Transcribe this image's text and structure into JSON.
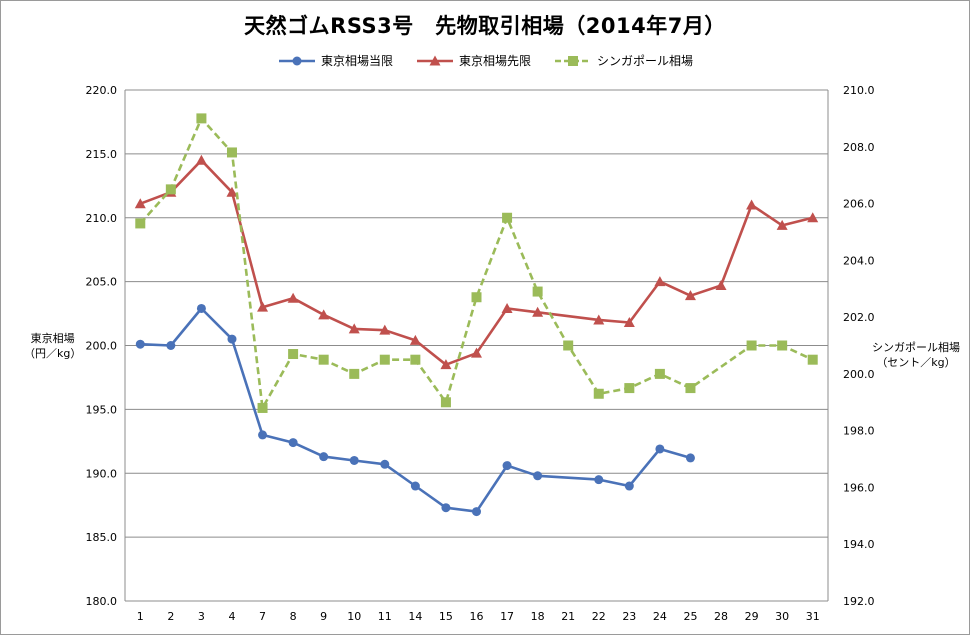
{
  "chart_data": {
    "type": "line",
    "title": "天然ゴムRSS3号　先物取引相場（2014年7月）",
    "ylabel_left": "東京相場\n（円／kg）",
    "ylabel_right": "シンガポール相場\n（セント／kg）",
    "categories": [
      "1",
      "2",
      "3",
      "4",
      "7",
      "8",
      "9",
      "10",
      "11",
      "14",
      "15",
      "16",
      "17",
      "18",
      "21",
      "22",
      "23",
      "24",
      "25",
      "28",
      "29",
      "30",
      "31"
    ],
    "y_left": {
      "min": 180,
      "max": 220,
      "step": 5,
      "tick_labels": [
        "180.0",
        "185.0",
        "190.0",
        "195.0",
        "200.0",
        "205.0",
        "210.0",
        "215.0",
        "220.0"
      ]
    },
    "y_right": {
      "min": 192,
      "max": 210,
      "step": 2,
      "tick_labels": [
        "192.0",
        "194.0",
        "196.0",
        "198.0",
        "200.0",
        "202.0",
        "204.0",
        "206.0",
        "208.0",
        "210.0"
      ]
    },
    "grid": true,
    "legend_position": "top-center",
    "series": [
      {
        "name": "東京相場当限",
        "axis": "left",
        "color": "#4a72b8",
        "marker": "circle",
        "dash": false,
        "values": [
          200.1,
          200.0,
          202.9,
          200.5,
          193.0,
          192.4,
          191.3,
          191.0,
          190.7,
          189.0,
          187.3,
          187.0,
          190.6,
          189.8,
          null,
          189.5,
          189.0,
          191.9,
          191.2,
          null,
          null,
          null,
          null
        ]
      },
      {
        "name": "東京相場先限",
        "axis": "left",
        "color": "#c0504d",
        "marker": "triangle",
        "dash": false,
        "values": [
          211.1,
          212.0,
          214.5,
          212.0,
          203.0,
          203.7,
          202.4,
          201.3,
          201.2,
          200.4,
          198.5,
          199.4,
          202.9,
          202.6,
          null,
          202.0,
          201.8,
          205.0,
          203.9,
          204.7,
          211.0,
          209.4,
          210.0
        ]
      },
      {
        "name": "シンガポール相場",
        "axis": "right",
        "color": "#9bbb59",
        "marker": "square",
        "dash": true,
        "values": [
          205.3,
          206.5,
          209.0,
          207.8,
          198.8,
          200.7,
          200.5,
          200.0,
          200.5,
          200.5,
          199.0,
          202.7,
          205.5,
          202.9,
          201.0,
          199.3,
          199.5,
          200.0,
          199.5,
          null,
          201.0,
          201.0,
          200.5
        ]
      }
    ]
  }
}
